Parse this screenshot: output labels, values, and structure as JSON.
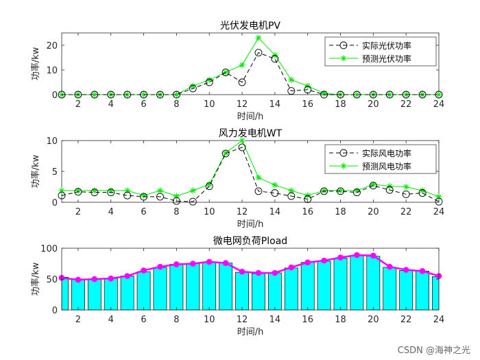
{
  "watermark": "CSDN @海神之光",
  "colors": {
    "actual": "#000000",
    "forecast": "#00e600",
    "bar_fill": "#00ffff",
    "bar_edge": "#000000",
    "load_line": "#ff00ff"
  },
  "chart_data": [
    {
      "id": "pv",
      "type": "line",
      "title": "光伏发电机PV",
      "xlabel": "时间/h",
      "ylabel": "功率/kw",
      "xlim": [
        1,
        24
      ],
      "ylim": [
        0,
        25
      ],
      "xticks": [
        2,
        4,
        6,
        8,
        10,
        12,
        14,
        16,
        18,
        20,
        22,
        24
      ],
      "yticks": [
        0,
        10,
        20
      ],
      "x": [
        1,
        2,
        3,
        4,
        5,
        6,
        7,
        8,
        9,
        10,
        11,
        12,
        13,
        14,
        15,
        16,
        17,
        18,
        19,
        20,
        21,
        22,
        23,
        24
      ],
      "series": [
        {
          "name": "实际光伏功率",
          "style": "actual",
          "values": [
            0,
            0,
            0,
            0,
            0,
            0,
            0,
            0,
            2.5,
            5,
            9,
            5,
            17,
            14.5,
            1.5,
            2,
            0,
            0,
            0,
            0,
            0,
            0,
            0,
            0
          ]
        },
        {
          "name": "预测光伏功率",
          "style": "forecast",
          "values": [
            0,
            0,
            0,
            0,
            0,
            0,
            0,
            0,
            3.5,
            6,
            9,
            12,
            23,
            16,
            6,
            3.5,
            0.5,
            0,
            0,
            0,
            0,
            0,
            0,
            0
          ]
        }
      ],
      "legend": "top-right"
    },
    {
      "id": "wt",
      "type": "line",
      "title": "风力发电机WT",
      "xlabel": "时间/h",
      "ylabel": "功率/kw",
      "xlim": [
        1,
        24
      ],
      "ylim": [
        0,
        10
      ],
      "xticks": [
        2,
        4,
        6,
        8,
        10,
        12,
        14,
        16,
        18,
        20,
        22,
        24
      ],
      "yticks": [
        0,
        5,
        10
      ],
      "x": [
        1,
        2,
        3,
        4,
        5,
        6,
        7,
        8,
        9,
        10,
        11,
        12,
        13,
        14,
        15,
        16,
        17,
        18,
        19,
        20,
        21,
        22,
        23,
        24
      ],
      "series": [
        {
          "name": "实际风电功率",
          "style": "actual",
          "values": [
            1.1,
            1.7,
            1.6,
            1.6,
            1.1,
            0.9,
            0.9,
            0.2,
            0.1,
            2.6,
            7.9,
            8.9,
            1.8,
            1.5,
            1.0,
            0.5,
            1.8,
            1.8,
            1.6,
            2.7,
            2.0,
            1.3,
            1.5,
            0.1
          ]
        },
        {
          "name": "预测风电功率",
          "style": "forecast",
          "values": [
            1.9,
            1.9,
            1.9,
            1.9,
            1.9,
            1.1,
            1.9,
            1.0,
            1.9,
            2.9,
            8.0,
            10.0,
            4.0,
            2.8,
            1.9,
            1.1,
            1.9,
            1.9,
            1.9,
            2.9,
            2.6,
            2.5,
            1.9,
            0.9
          ]
        }
      ],
      "legend": "top-right"
    },
    {
      "id": "load",
      "type": "bar",
      "title": "微电网负荷Pload",
      "xlabel": "时间/h",
      "ylabel": "功率/kw",
      "xlim": [
        1,
        24
      ],
      "ylim": [
        0,
        100
      ],
      "xticks": [
        2,
        4,
        6,
        8,
        10,
        12,
        14,
        16,
        18,
        20,
        22,
        24
      ],
      "yticks": [
        0,
        50,
        100
      ],
      "x": [
        1,
        2,
        3,
        4,
        5,
        6,
        7,
        8,
        9,
        10,
        11,
        12,
        13,
        14,
        15,
        16,
        17,
        18,
        19,
        20,
        21,
        22,
        23,
        24
      ],
      "values": [
        53,
        50,
        50,
        51,
        55,
        62,
        69,
        74,
        75,
        78,
        76,
        61,
        59,
        60,
        68,
        77,
        79,
        84,
        88,
        87,
        69,
        64,
        63,
        54
      ],
      "line_values": [
        52,
        49,
        50,
        51,
        55,
        64,
        70,
        74,
        75,
        78,
        76,
        62,
        60,
        60,
        69,
        77,
        80,
        85,
        89,
        88,
        70,
        65,
        63,
        55
      ]
    }
  ]
}
